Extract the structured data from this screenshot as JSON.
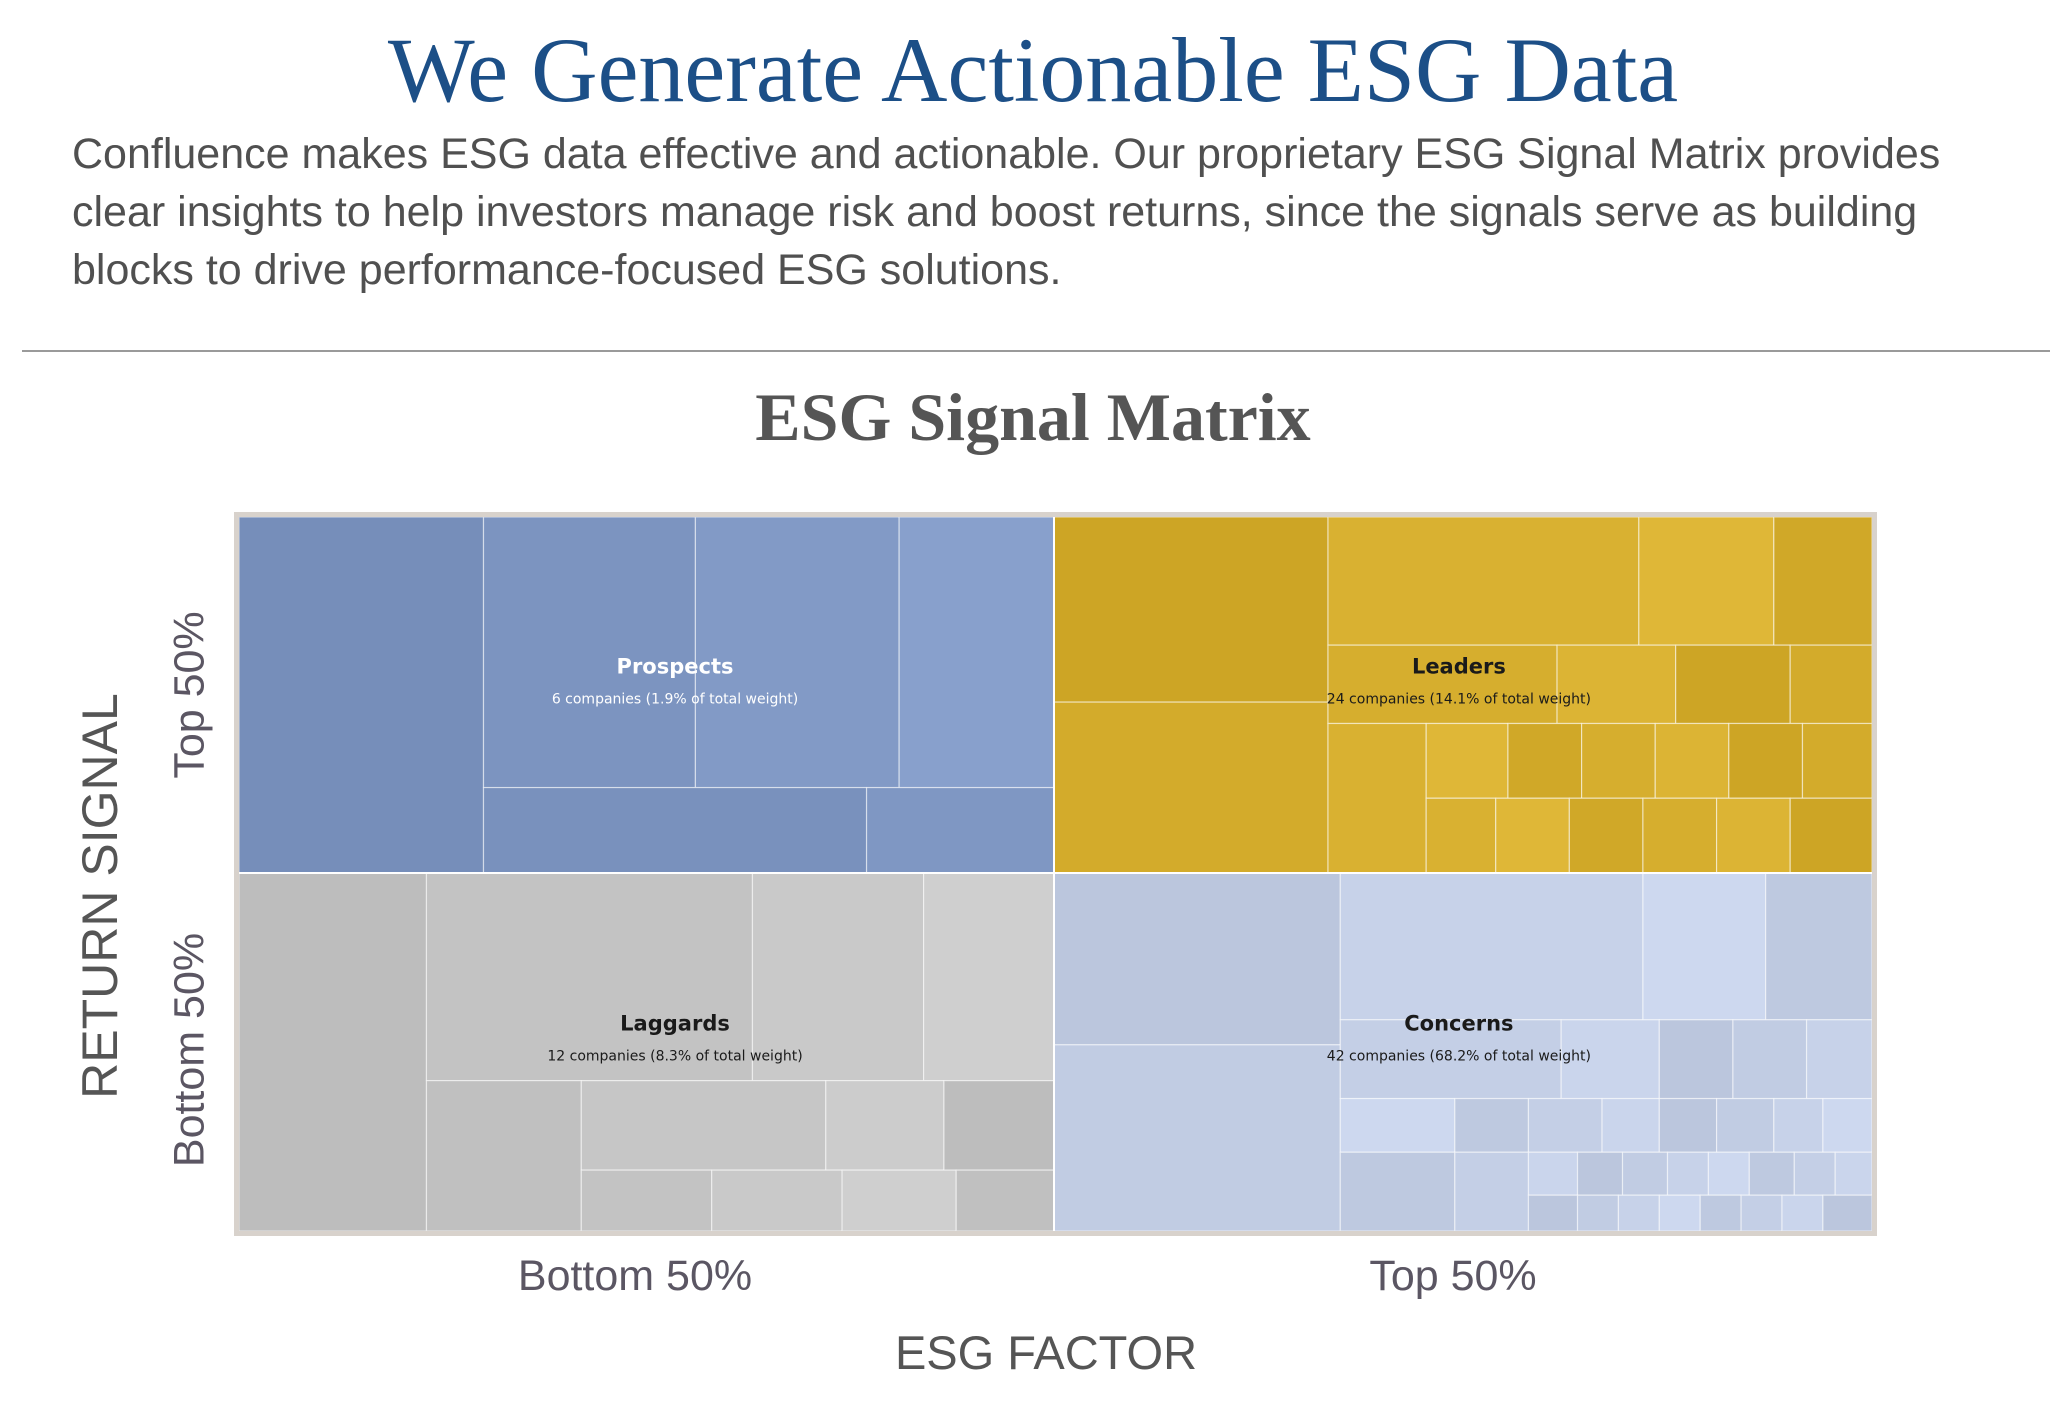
{
  "page": {
    "headline": "We Generate Actionable ESG Data",
    "intro": "Confluence makes ESG data effective and actionable. Our proprietary ESG Signal Matrix provides clear insights to help investors manage risk and boost returns, since the signals serve as building blocks to drive performance-focused ESG solutions."
  },
  "chart_data": {
    "type": "treemap",
    "title": "ESG Signal Matrix",
    "xlabel": "ESG FACTOR",
    "ylabel": "RETURN SIGNAL",
    "x_ticks": [
      "Bottom 50%",
      "Top 50%"
    ],
    "y_ticks": [
      "Top 50%",
      "Bottom 50%"
    ],
    "quadrants": [
      {
        "name": "Prospects",
        "esg_factor": "Bottom 50%",
        "return_signal": "Top 50%",
        "label": "6 companies (1.9% of total weight)",
        "companies": 6,
        "weight_pct": 1.9,
        "color": "#7f97c3"
      },
      {
        "name": "Leaders",
        "esg_factor": "Top 50%",
        "return_signal": "Top 50%",
        "label": "24 companies (14.1% of total weight)",
        "companies": 24,
        "weight_pct": 14.1,
        "color": "#d6ae2e"
      },
      {
        "name": "Laggards",
        "esg_factor": "Bottom 50%",
        "return_signal": "Bottom 50%",
        "label": "12 companies (8.3% of total weight)",
        "companies": 12,
        "weight_pct": 8.3,
        "color": "#c6c6c6"
      },
      {
        "name": "Concerns",
        "esg_factor": "Top 50%",
        "return_signal": "Bottom 50%",
        "label": "42 companies (68.2% of total weight)",
        "companies": 42,
        "weight_pct": 68.2,
        "color": "#c4cfe6"
      }
    ]
  }
}
